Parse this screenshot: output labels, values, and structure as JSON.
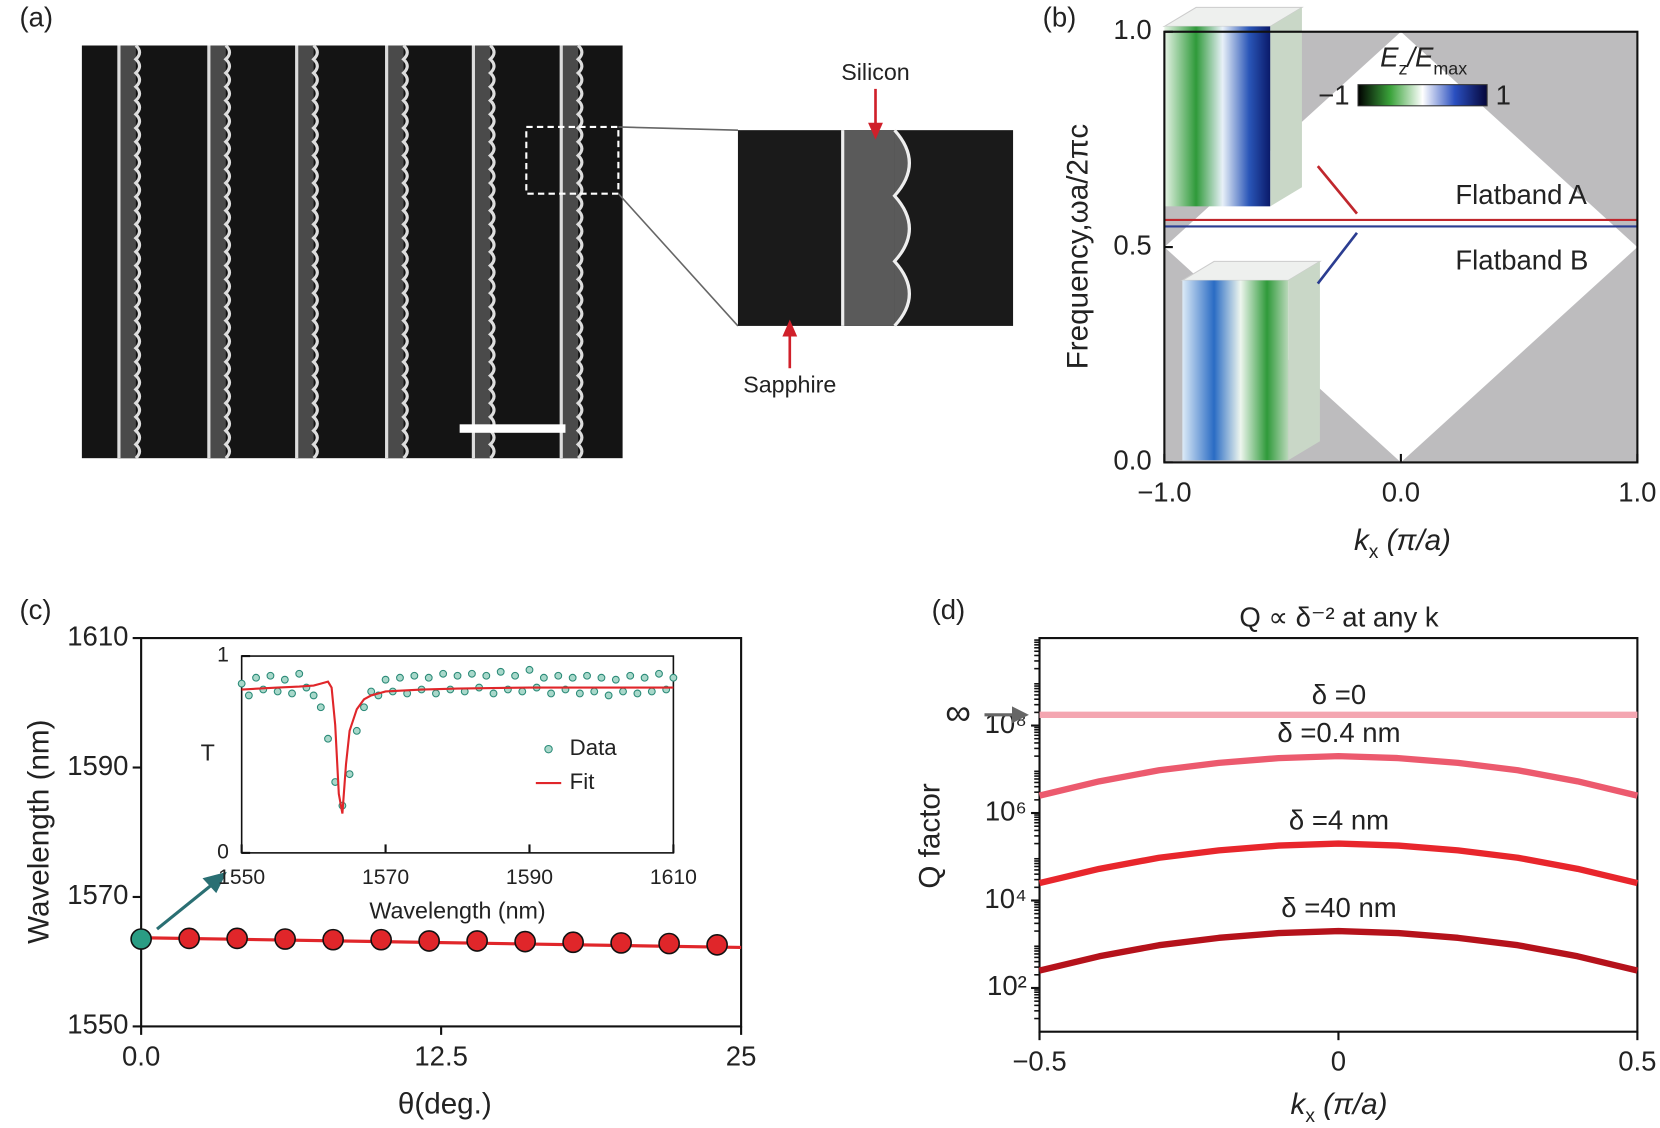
{
  "figure_a": {
    "panel": "(a)",
    "annotations": [
      "Silicon",
      "Sapphire"
    ]
  },
  "chart_data": [
    {
      "type": "band",
      "panel": "(b)",
      "x_label": [
        "k",
        "x",
        " (π/a)"
      ],
      "y_label": "Frequency,ωa/2πc",
      "xlim": [
        -1,
        1
      ],
      "ylim": [
        0,
        1
      ],
      "xticks": [
        {
          "value": -1,
          "label": "−1.0"
        },
        {
          "value": 0,
          "label": "0.0"
        },
        {
          "value": 1,
          "label": "1.0"
        }
      ],
      "yticks": [
        {
          "value": 0,
          "label": "0.0"
        },
        0.5,
        {
          "value": 1,
          "label": "1.0"
        }
      ],
      "light_cone": {
        "x": [
          -1,
          0,
          1,
          0
        ],
        "y": [
          0.5,
          0,
          0.5,
          1
        ]
      },
      "series": [
        {
          "name": "Flatband A",
          "color": "#c0272d",
          "x": [
            -1,
            1
          ],
          "values": [
            0.563,
            0.563
          ]
        },
        {
          "name": "Flatband B",
          "color": "#2b3d91",
          "x": [
            -1,
            1
          ],
          "values": [
            0.548,
            0.548
          ]
        }
      ],
      "colorbar": {
        "title": [
          "E",
          "z",
          "/E",
          "max"
        ],
        "ticks": [
          {
            "value": -1,
            "label": "−1"
          },
          1
        ]
      }
    },
    {
      "type": "scatter",
      "panel": "(c)",
      "x_label": "θ(deg.)",
      "y_label": "Wavelength (nm)",
      "xlim": [
        0,
        25
      ],
      "ylim": [
        1550,
        1610
      ],
      "xticks": [
        {
          "value": 0,
          "label": "0.0"
        },
        12.5,
        25
      ],
      "yticks": [
        1550,
        1570,
        1590,
        1610
      ],
      "points": {
        "x": [
          0,
          2,
          4,
          6,
          8,
          10,
          12,
          14,
          16,
          18,
          20,
          22,
          24
        ],
        "values": [
          1563.5,
          1563.6,
          1563.6,
          1563.5,
          1563.4,
          1563.4,
          1563.2,
          1563.2,
          1563.1,
          1563.0,
          1562.9,
          1562.8,
          1562.6
        ],
        "colors": [
          "#2a9d84",
          "#e0262a",
          "#e0262a",
          "#e0262a",
          "#e0262a",
          "#e0262a",
          "#e0262a",
          "#e0262a",
          "#e0262a",
          "#e0262a",
          "#e0262a",
          "#e0262a",
          "#e0262a"
        ]
      },
      "fit": {
        "color": "#e0262a",
        "x": [
          0,
          25
        ],
        "values": [
          1563.7,
          1562.2
        ]
      }
    },
    {
      "type": "spectrum",
      "x_label": "Wavelength (nm)",
      "y_label": "T",
      "xlim": [
        1550,
        1610
      ],
      "ylim": [
        0,
        1
      ],
      "xticks": [
        1550,
        1570,
        1590,
        1610
      ],
      "yticks": [
        0,
        1
      ],
      "series": [
        {
          "name": "Data",
          "color": "#2a8a77",
          "x": [
            1550,
            1551,
            1552,
            1553,
            1554,
            1555,
            1556,
            1557,
            1558,
            1559,
            1560,
            1561,
            1562,
            1563,
            1564,
            1565,
            1566,
            1567,
            1568,
            1569,
            1570,
            1571,
            1572,
            1573,
            1574,
            1575,
            1576,
            1577,
            1578,
            1579,
            1580,
            1581,
            1582,
            1583,
            1584,
            1585,
            1586,
            1587,
            1588,
            1589,
            1590,
            1591,
            1592,
            1593,
            1594,
            1595,
            1596,
            1597,
            1598,
            1599,
            1600,
            1601,
            1602,
            1603,
            1604,
            1605,
            1606,
            1607,
            1608,
            1609,
            1610
          ],
          "values": [
            0.86,
            0.8,
            0.89,
            0.83,
            0.9,
            0.82,
            0.88,
            0.81,
            0.91,
            0.84,
            0.8,
            0.74,
            0.58,
            0.36,
            0.24,
            0.4,
            0.62,
            0.74,
            0.82,
            0.8,
            0.88,
            0.82,
            0.89,
            0.81,
            0.9,
            0.83,
            0.89,
            0.81,
            0.91,
            0.83,
            0.9,
            0.82,
            0.91,
            0.84,
            0.9,
            0.81,
            0.92,
            0.83,
            0.9,
            0.82,
            0.93,
            0.84,
            0.89,
            0.81,
            0.9,
            0.83,
            0.89,
            0.81,
            0.9,
            0.82,
            0.89,
            0.8,
            0.88,
            0.82,
            0.9,
            0.81,
            0.89,
            0.82,
            0.91,
            0.83,
            0.89
          ]
        },
        {
          "name": "Fit",
          "color": "#e0262a",
          "x": [
            1550,
            1555,
            1558,
            1560,
            1561,
            1562,
            1562.5,
            1563,
            1563.5,
            1564,
            1564.5,
            1565,
            1566,
            1567,
            1568,
            1570,
            1575,
            1580,
            1590,
            1600,
            1610
          ],
          "values": [
            0.83,
            0.84,
            0.845,
            0.85,
            0.86,
            0.87,
            0.84,
            0.65,
            0.3,
            0.2,
            0.45,
            0.62,
            0.73,
            0.78,
            0.8,
            0.82,
            0.83,
            0.835,
            0.84,
            0.84,
            0.84
          ]
        }
      ]
    },
    {
      "type": "line",
      "panel": "(d)",
      "title": "Q ∝ δ⁻² at any k",
      "x_label": [
        "k",
        "x",
        " (π/a)"
      ],
      "y_label": "Q factor",
      "log_y": true,
      "xlim": [
        -0.5,
        0.5
      ],
      "ylim": [
        10,
        10000000000
      ],
      "xticks": [
        {
          "value": -0.5,
          "label": "−0.5"
        },
        0,
        0.5
      ],
      "yticks": [
        {
          "value": 100,
          "label": "10²"
        },
        {
          "value": 10000,
          "label": "10⁴"
        },
        {
          "value": 1000000,
          "label": "10⁶"
        },
        {
          "value": 100000000,
          "label": "10⁸"
        }
      ],
      "infinity_label": "∞",
      "x": [
        -0.5,
        -0.4,
        -0.3,
        -0.2,
        -0.1,
        0,
        0.1,
        0.2,
        0.3,
        0.4,
        0.5
      ],
      "series": [
        {
          "name": "δ =0",
          "color": "#f4a6b1",
          "infinite": true
        },
        {
          "name": "δ =0.4 nm",
          "color": "#ec5a6e",
          "values": [
            2500000.0,
            5300000.0,
            9500000.0,
            14000000.0,
            18000000.0,
            20000000.0,
            18000000.0,
            14000000.0,
            9500000.0,
            5300000.0,
            2500000.0
          ]
        },
        {
          "name": "δ =4 nm",
          "color": "#e8262c",
          "values": [
            25000.0,
            53000.0,
            95000.0,
            140000.0,
            180000.0,
            200000.0,
            180000.0,
            140000.0,
            95000.0,
            53000.0,
            25000.0
          ]
        },
        {
          "name": "δ =40 nm",
          "color": "#b5121b",
          "values": [
            250,
            530,
            950,
            1400,
            1800,
            2000,
            1800,
            1400,
            950,
            530,
            250
          ]
        }
      ]
    }
  ]
}
